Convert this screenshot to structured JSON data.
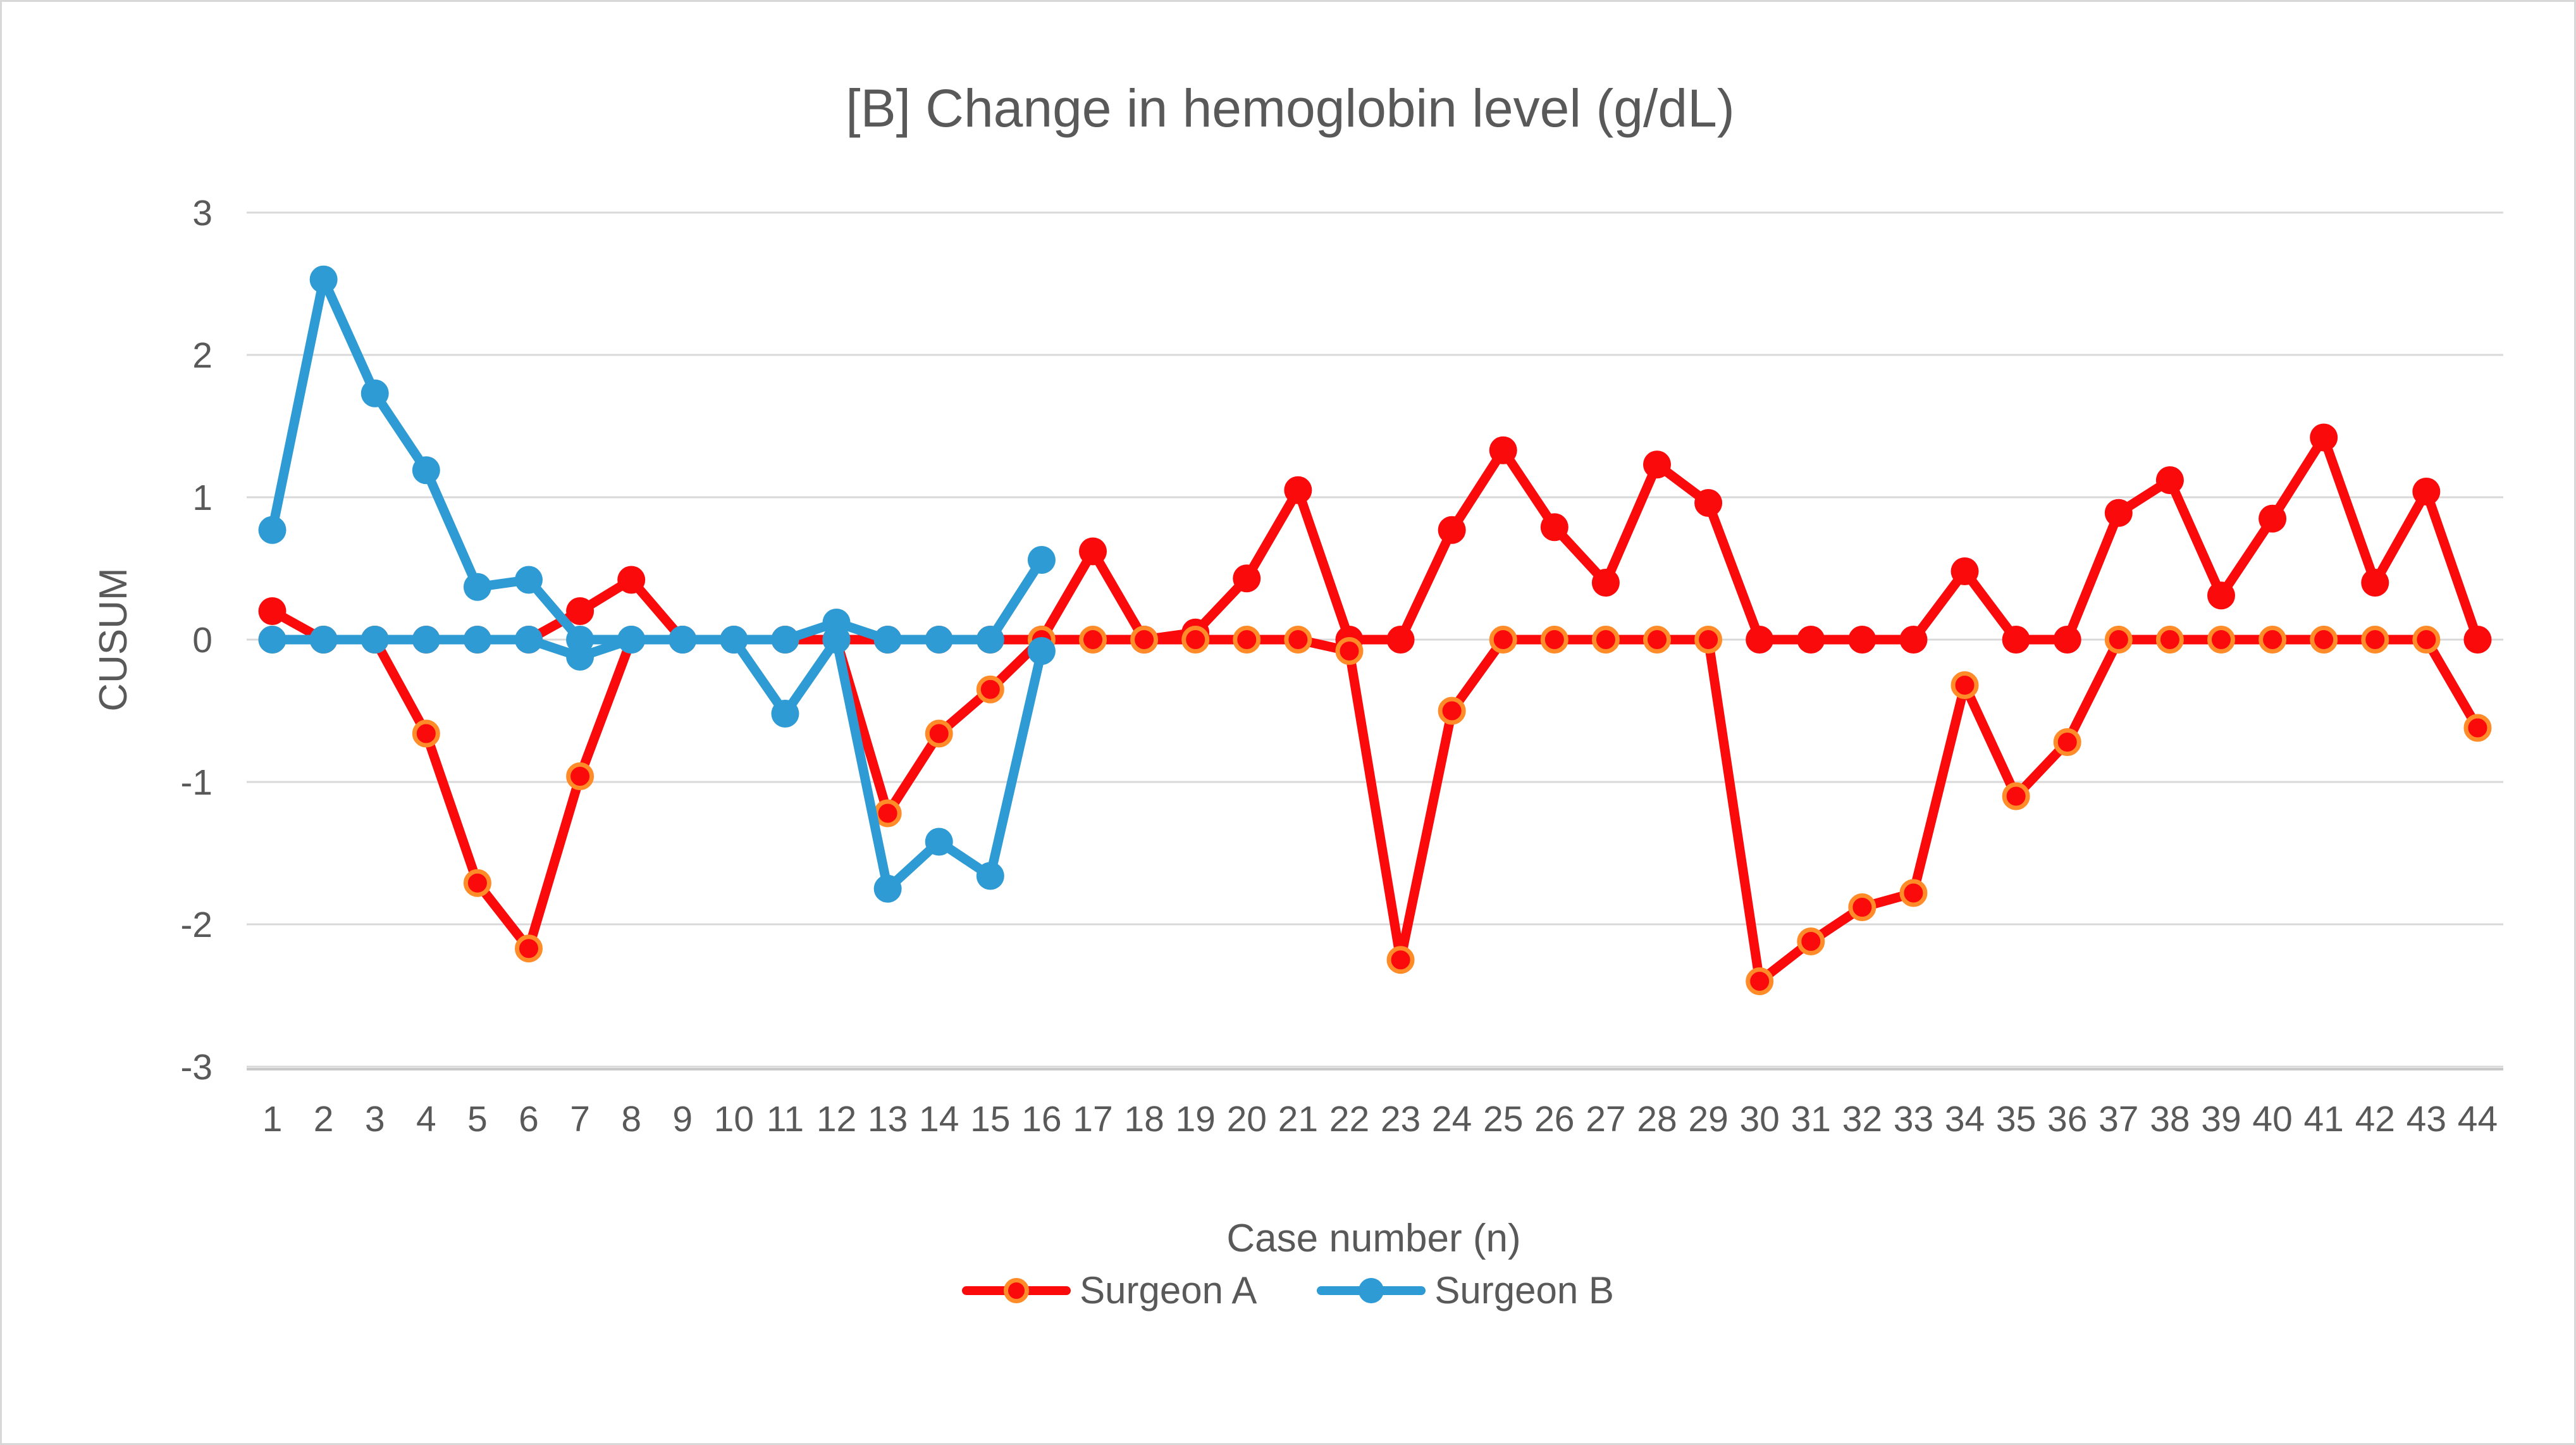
{
  "title": "[B] Change in hemoglobin level (g/dL)",
  "axes": {
    "y_label": "CUSUM",
    "x_label": "Case number (n)",
    "y_ticks": [
      3,
      2,
      1,
      0,
      -1,
      -2,
      -3
    ],
    "x_ticks": [
      1,
      2,
      3,
      4,
      5,
      6,
      7,
      8,
      9,
      10,
      11,
      12,
      13,
      14,
      15,
      16,
      17,
      18,
      19,
      20,
      21,
      22,
      23,
      24,
      25,
      26,
      27,
      28,
      29,
      30,
      31,
      32,
      33,
      34,
      35,
      36,
      37,
      38,
      39,
      40,
      41,
      42,
      43,
      44
    ]
  },
  "legend": [
    {
      "label": "Surgeon A",
      "color": "#FA0A0A",
      "marker_border": "#FF8C28"
    },
    {
      "label": "Surgeon B",
      "color": "#2E9BD5",
      "marker_border": null
    }
  ],
  "colors": {
    "red_series": "#FA0A0A",
    "red_marker_ring": "#FF8C28",
    "blue_series": "#2E9BD5",
    "gridline": "#D9D9D9",
    "axis_line": "#C9C9C9",
    "text": "#595959",
    "page_border": "#D8D8D8"
  },
  "chart_data": {
    "type": "line",
    "title": "[B] Change in hemoglobin level (g/dL)",
    "xlabel": "Case number (n)",
    "ylabel": "CUSUM",
    "x": [
      1,
      2,
      3,
      4,
      5,
      6,
      7,
      8,
      9,
      10,
      11,
      12,
      13,
      14,
      15,
      16,
      17,
      18,
      19,
      20,
      21,
      22,
      23,
      24,
      25,
      26,
      27,
      28,
      29,
      30,
      31,
      32,
      33,
      34,
      35,
      36,
      37,
      38,
      39,
      40,
      41,
      42,
      43,
      44
    ],
    "ylim": [
      -3,
      3
    ],
    "grid": "horizontal",
    "legend_position": "bottom",
    "series": [
      {
        "name": "Surgeon A (upper CUSUM)",
        "legend": "Surgeon A",
        "color": "#FA0A0A",
        "marker_border": null,
        "values": [
          0.2,
          0,
          0,
          0,
          0,
          0,
          0.2,
          0.42,
          0,
          0,
          0,
          0,
          0,
          0,
          0,
          0,
          0.62,
          0,
          0.05,
          0.43,
          1.05,
          0,
          0,
          0.77,
          1.33,
          0.79,
          0.4,
          1.23,
          0.96,
          0,
          0,
          0,
          0,
          0.48,
          0,
          0,
          0.89,
          1.12,
          0.31,
          0.85,
          1.42,
          0.4,
          1.04,
          0
        ]
      },
      {
        "name": "Surgeon A (lower CUSUM)",
        "legend": "Surgeon A",
        "color": "#FA0A0A",
        "marker_border": "#FF8C28",
        "values": [
          0,
          0,
          0,
          -0.66,
          -1.71,
          -2.17,
          -0.96,
          0,
          0,
          0,
          0,
          0,
          -1.22,
          -0.66,
          -0.35,
          0,
          0,
          0,
          0,
          0,
          0,
          -0.08,
          -2.25,
          -0.5,
          0,
          0,
          0,
          0,
          0,
          -2.4,
          -2.12,
          -1.88,
          -1.78,
          -0.32,
          -1.1,
          -0.72,
          0,
          0,
          0,
          0,
          0,
          0,
          0,
          -0.62
        ]
      },
      {
        "name": "Surgeon B (upper CUSUM)",
        "legend": "Surgeon B",
        "color": "#2E9BD5",
        "marker_border": null,
        "values": [
          0.77,
          2.53,
          1.73,
          1.19,
          0.37,
          0.42,
          0,
          0,
          0,
          0,
          0,
          0.12,
          0,
          0,
          0,
          0.56
        ]
      },
      {
        "name": "Surgeon B (lower CUSUM)",
        "legend": "Surgeon B",
        "color": "#2E9BD5",
        "marker_border": null,
        "values": [
          0,
          0,
          0,
          0,
          0,
          0,
          -0.12,
          0,
          0,
          0,
          -0.52,
          0,
          -1.75,
          -1.42,
          -1.66,
          -0.08
        ]
      }
    ]
  }
}
